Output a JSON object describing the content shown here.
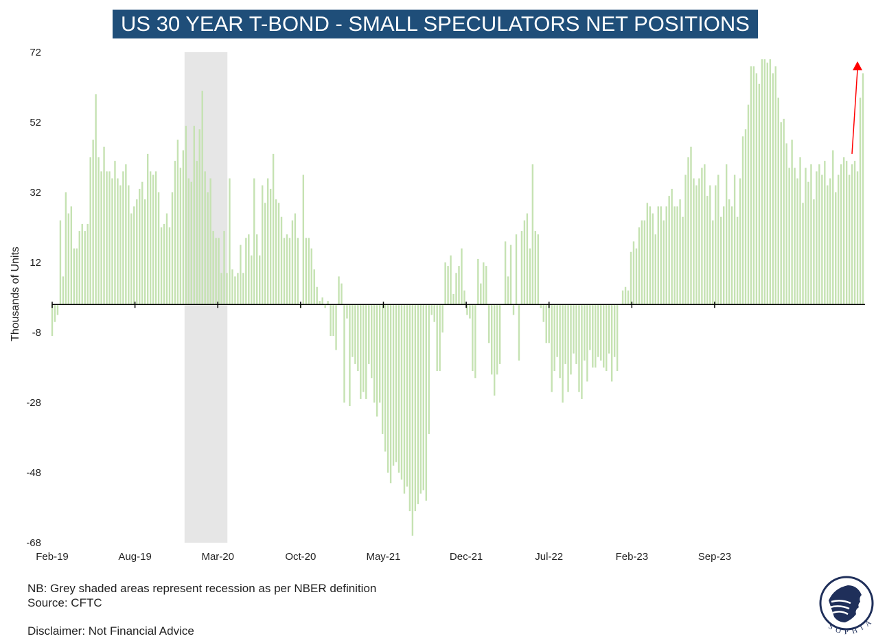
{
  "title": "US 30 YEAR T-BOND - SMALL SPECULATORS NET POSITIONS",
  "notes": {
    "line1": "NB: Grey shaded areas represent recession as per NBER definition",
    "line2": "Source: CFTC",
    "disclaimer": "Disclaimer: Not Financial Advice"
  },
  "logo": {
    "text": "SOPHIA",
    "icon": "sophia-head-logo-icon"
  },
  "colors": {
    "bars": "#c5e2b2",
    "title_bg": "#1f4e79",
    "recession": "#e6e6e6",
    "arrow": "#ff0000"
  },
  "chart_data": {
    "type": "bar",
    "ylabel": "Thousands of Units",
    "ylim": [
      -68,
      72
    ],
    "yticks": [
      "72",
      "52",
      "32",
      "12",
      "-8",
      "-28",
      "-48",
      "-68"
    ],
    "xticks": [
      "Feb-19",
      "Aug-19",
      "Mar-20",
      "Oct-20",
      "May-21",
      "Dec-21",
      "Jul-22",
      "Feb-23",
      "Sep-23"
    ],
    "recession": {
      "start": "2020-02",
      "end": "2020-04"
    },
    "arrow": {
      "from": 43,
      "to": 69,
      "direction": "up"
    },
    "frequency": "weekly",
    "values": [
      -9,
      -5,
      -3,
      24,
      8,
      32,
      26,
      28,
      16,
      16,
      21,
      23,
      21,
      23,
      42,
      47,
      60,
      42,
      38,
      45,
      38,
      38,
      36,
      41,
      36,
      34,
      38,
      40,
      34,
      26,
      28,
      30,
      33,
      35,
      30,
      43,
      38,
      37,
      38,
      32,
      22,
      23,
      26,
      22,
      32,
      41,
      47,
      39,
      44,
      51,
      36,
      35,
      51,
      41,
      50,
      61,
      38,
      32,
      36,
      21,
      19,
      19,
      9,
      21,
      9,
      36,
      10,
      8,
      9,
      17,
      9,
      19,
      20,
      14,
      36,
      20,
      14,
      34,
      29,
      36,
      33,
      43,
      30,
      29,
      25,
      19,
      20,
      19,
      24,
      26,
      19,
      -1,
      37,
      19,
      19,
      16,
      10,
      5,
      1,
      2,
      -1,
      1,
      -9,
      -9,
      -13,
      8,
      6,
      -28,
      -4,
      -29,
      -15,
      -17,
      -19,
      -27,
      -25,
      -27,
      -17,
      -21,
      -28,
      -32,
      -28,
      -37,
      -42,
      -48,
      -51,
      -46,
      -45,
      -48,
      -50,
      -54,
      -52,
      -59,
      -66,
      -59,
      -57,
      -54,
      -53,
      -56,
      -37,
      -3,
      -5,
      -19,
      -19,
      -8,
      12,
      11,
      14,
      3,
      9,
      11,
      16,
      4,
      -3,
      -4,
      -19,
      -21,
      13,
      6,
      12,
      11,
      -11,
      -20,
      -26,
      -20,
      -17,
      0,
      18,
      8,
      17,
      -3,
      20,
      -16,
      21,
      24,
      26,
      16,
      40,
      21,
      20,
      -1,
      -5,
      -11,
      -11,
      -25,
      -19,
      -15,
      -21,
      -28,
      -17,
      -25,
      -20,
      -14,
      -17,
      -25,
      -27,
      -16,
      -22,
      -13,
      -18,
      -18,
      -15,
      -16,
      -18,
      -19,
      -14,
      -22,
      -15,
      -19,
      0,
      4,
      5,
      4,
      15,
      18,
      16,
      22,
      24,
      24,
      29,
      28,
      26,
      20,
      28,
      28,
      24,
      28,
      31,
      33,
      28,
      28,
      30,
      25,
      37,
      42,
      45,
      36,
      34,
      36,
      39,
      40,
      31,
      34,
      24,
      34,
      37,
      25,
      28,
      40,
      30,
      28,
      37,
      25,
      36,
      48,
      50,
      57,
      68,
      68,
      66,
      63,
      70,
      70,
      69,
      70,
      66,
      68,
      59,
      52,
      53,
      46,
      39,
      47,
      39,
      36,
      42,
      29,
      39,
      35,
      40,
      30,
      38,
      40,
      37,
      41,
      34,
      36,
      44,
      32,
      37,
      40,
      42,
      41,
      37,
      40,
      41,
      38,
      59,
      66
    ]
  }
}
